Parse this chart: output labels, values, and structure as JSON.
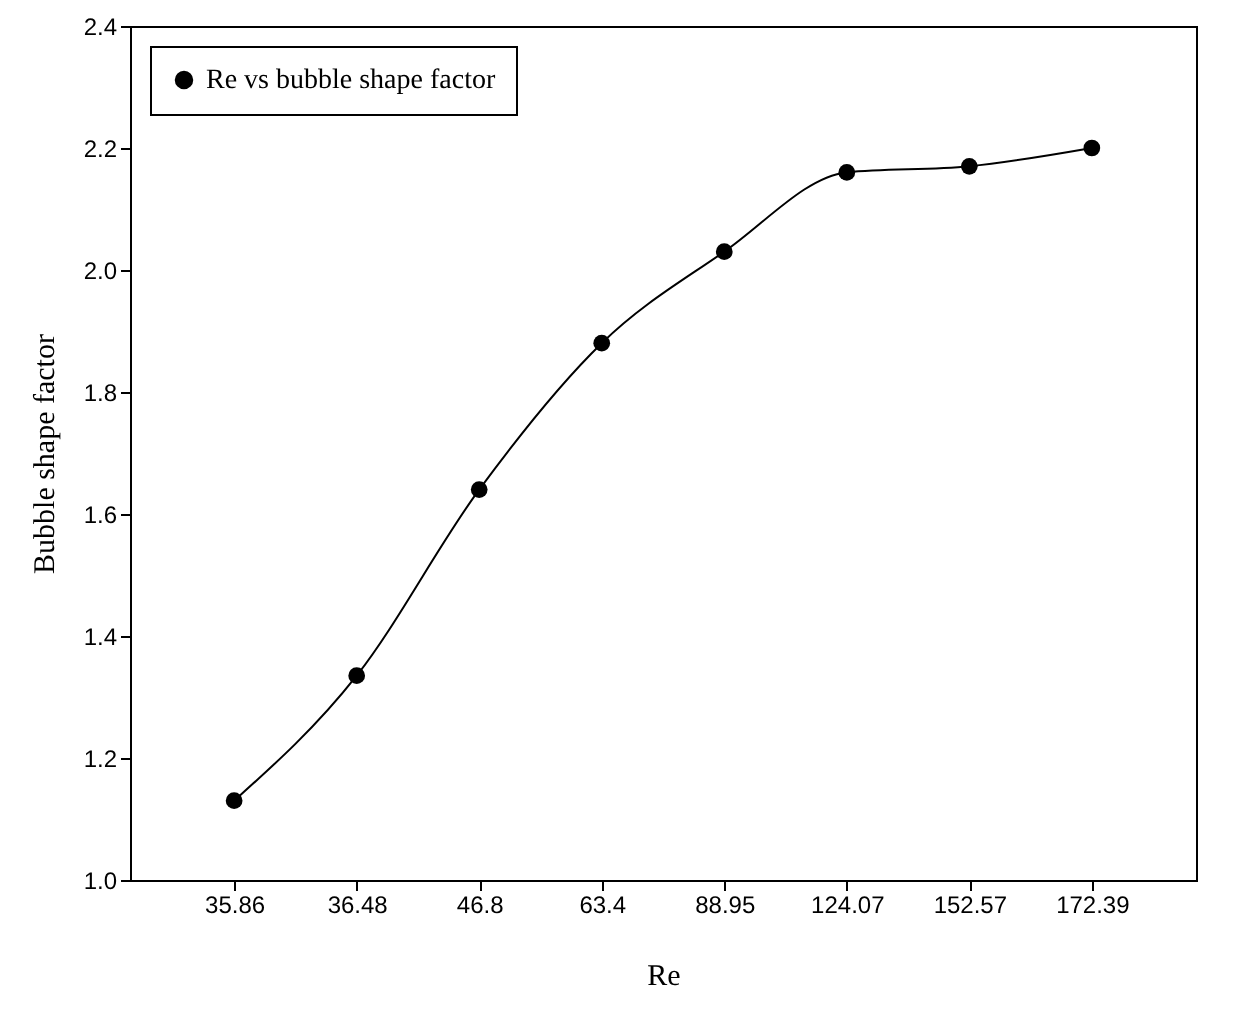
{
  "chart_data": {
    "type": "line",
    "xlabel": "Re",
    "ylabel": "Bubble shape factor",
    "categories": [
      "35.86",
      "36.48",
      "46.8",
      "63.4",
      "88.95",
      "124.07",
      "152.57",
      "172.39"
    ],
    "series": [
      {
        "name": "Re vs bubble shape factor",
        "color": "#000000",
        "values": [
          1.13,
          1.335,
          1.64,
          1.88,
          2.03,
          2.16,
          2.17,
          2.2
        ]
      }
    ],
    "ylim": [
      1.0,
      2.4
    ],
    "yticks": [
      {
        "value": 1.0,
        "label": "1.0"
      },
      {
        "value": 1.2,
        "label": "1.2"
      },
      {
        "value": 1.4,
        "label": "1.4"
      },
      {
        "value": 1.6,
        "label": "1.6"
      },
      {
        "value": 1.8,
        "label": "1.8"
      },
      {
        "value": 2.0,
        "label": "2.0"
      },
      {
        "value": 2.2,
        "label": "2.2"
      },
      {
        "value": 2.4,
        "label": "2.4"
      }
    ],
    "grid": false,
    "legend": "top left",
    "marker": "circle",
    "line_style": "solid"
  }
}
